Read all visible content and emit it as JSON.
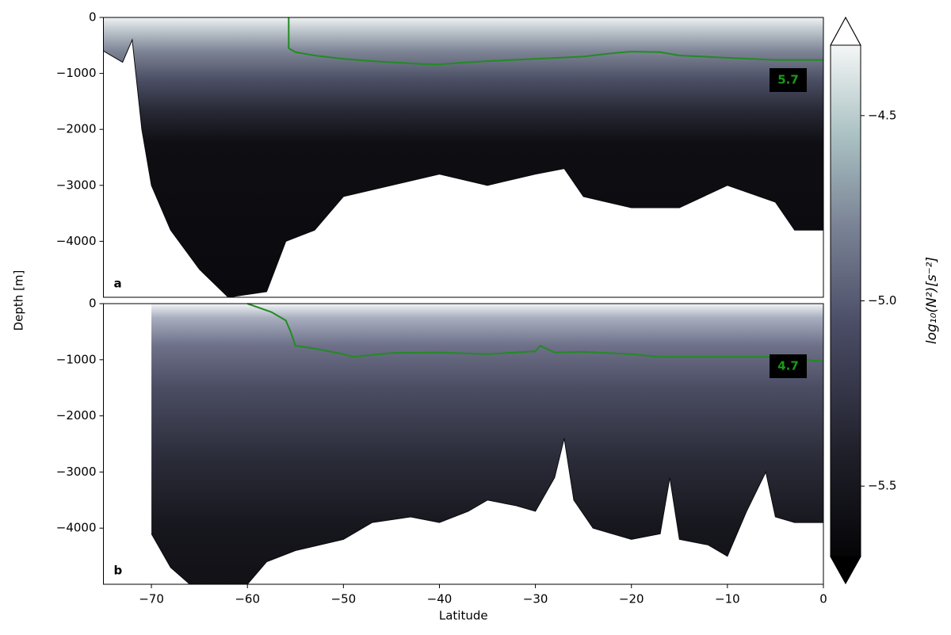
{
  "chart_data": [
    {
      "type": "section",
      "panel_label": "a",
      "ylabel": "Depth [m]",
      "annotation": "5.7",
      "xlim": [
        -75,
        0
      ],
      "ylim": [
        -5000,
        0
      ],
      "yticks": [
        0,
        {
          "value": -1000,
          "label": "−1000"
        },
        {
          "value": -2000,
          "label": "−2000"
        },
        {
          "value": -3000,
          "label": "−3000"
        },
        {
          "value": -4000,
          "label": "−4000"
        }
      ],
      "line_color": "#228b22",
      "line_x": [
        -55.7,
        -55.7,
        -55,
        -53,
        -50,
        -47,
        -45,
        -42,
        -40,
        -37,
        -35,
        -30,
        -25,
        -22,
        -20,
        -17,
        -15,
        -10,
        -5,
        0
      ],
      "line_values": [
        0,
        -550,
        -620,
        -680,
        -740,
        -780,
        -800,
        -830,
        -840,
        -800,
        -780,
        -740,
        -700,
        -640,
        -610,
        -620,
        -680,
        -720,
        -760,
        -760
      ],
      "bottom_x": [
        -75,
        -73,
        -72,
        -71,
        -70,
        -68,
        -65,
        -62,
        -58,
        -56,
        -53,
        -50,
        -45,
        -40,
        -35,
        -30,
        -27,
        -25,
        -20,
        -15,
        -10,
        -5,
        -3,
        0
      ],
      "bottom_depth": [
        -600,
        -800,
        -400,
        -2000,
        -3000,
        -3800,
        -4500,
        -5000,
        -4900,
        -4000,
        -3800,
        -3200,
        -3000,
        -2800,
        -3000,
        -2800,
        -2700,
        -3200,
        -3400,
        -3400,
        -3000,
        -3300,
        -3800,
        -3800
      ]
    },
    {
      "type": "section",
      "panel_label": "b",
      "xlabel": "Latitude",
      "annotation": "4.7",
      "xlim": [
        -75,
        0
      ],
      "ylim": [
        -5000,
        0
      ],
      "xticks": [
        {
          "value": -70,
          "label": "−70"
        },
        {
          "value": -60,
          "label": "−60"
        },
        {
          "value": -50,
          "label": "−50"
        },
        {
          "value": -40,
          "label": "−40"
        },
        {
          "value": -30,
          "label": "−30"
        },
        {
          "value": -20,
          "label": "−20"
        },
        {
          "value": -10,
          "label": "−10"
        },
        0
      ],
      "yticks": [
        0,
        {
          "value": -1000,
          "label": "−1000"
        },
        {
          "value": -2000,
          "label": "−2000"
        },
        {
          "value": -3000,
          "label": "−3000"
        },
        {
          "value": -4000,
          "label": "−4000"
        }
      ],
      "line_color": "#228b22",
      "line_x": [
        -60,
        -57.5,
        -56,
        -55.5,
        -55,
        -53,
        -50,
        -49,
        -45,
        -40,
        -35,
        -30,
        -29.5,
        -28,
        -25,
        -20,
        -17,
        -10,
        -5,
        0
      ],
      "line_values": [
        0,
        -150,
        -300,
        -500,
        -750,
        -800,
        -900,
        -950,
        -880,
        -870,
        -900,
        -850,
        -750,
        -870,
        -860,
        -900,
        -950,
        -950,
        -950,
        -1030
      ],
      "bottom_x": [
        -70,
        -68,
        -66,
        -60,
        -58,
        -55,
        -50,
        -47,
        -43,
        -40,
        -37,
        -35,
        -32,
        -30,
        -28,
        -27,
        -26,
        -24,
        -20,
        -17,
        -16,
        -15,
        -12,
        -10,
        -8,
        -6,
        -5,
        -3,
        0
      ],
      "bottom_depth": [
        -4100,
        -4700,
        -5000,
        -5000,
        -4600,
        -4400,
        -4200,
        -3900,
        -3800,
        -3900,
        -3700,
        -3500,
        -3600,
        -3700,
        -3100,
        -2400,
        -3500,
        -4000,
        -4200,
        -4100,
        -3100,
        -4200,
        -4300,
        -4500,
        -3700,
        -3000,
        -3800,
        -3900,
        -3900
      ]
    },
    {
      "type": "colorbar",
      "label": "log₁₀(N²)[s⁻²]",
      "ylim": [
        -5.69,
        -4.31
      ],
      "yticks": [
        {
          "value": -4.5,
          "label": "−4.5"
        },
        {
          "value": -5.0,
          "label": "−5.0"
        },
        {
          "value": -5.5,
          "label": "−5.5"
        }
      ]
    }
  ]
}
